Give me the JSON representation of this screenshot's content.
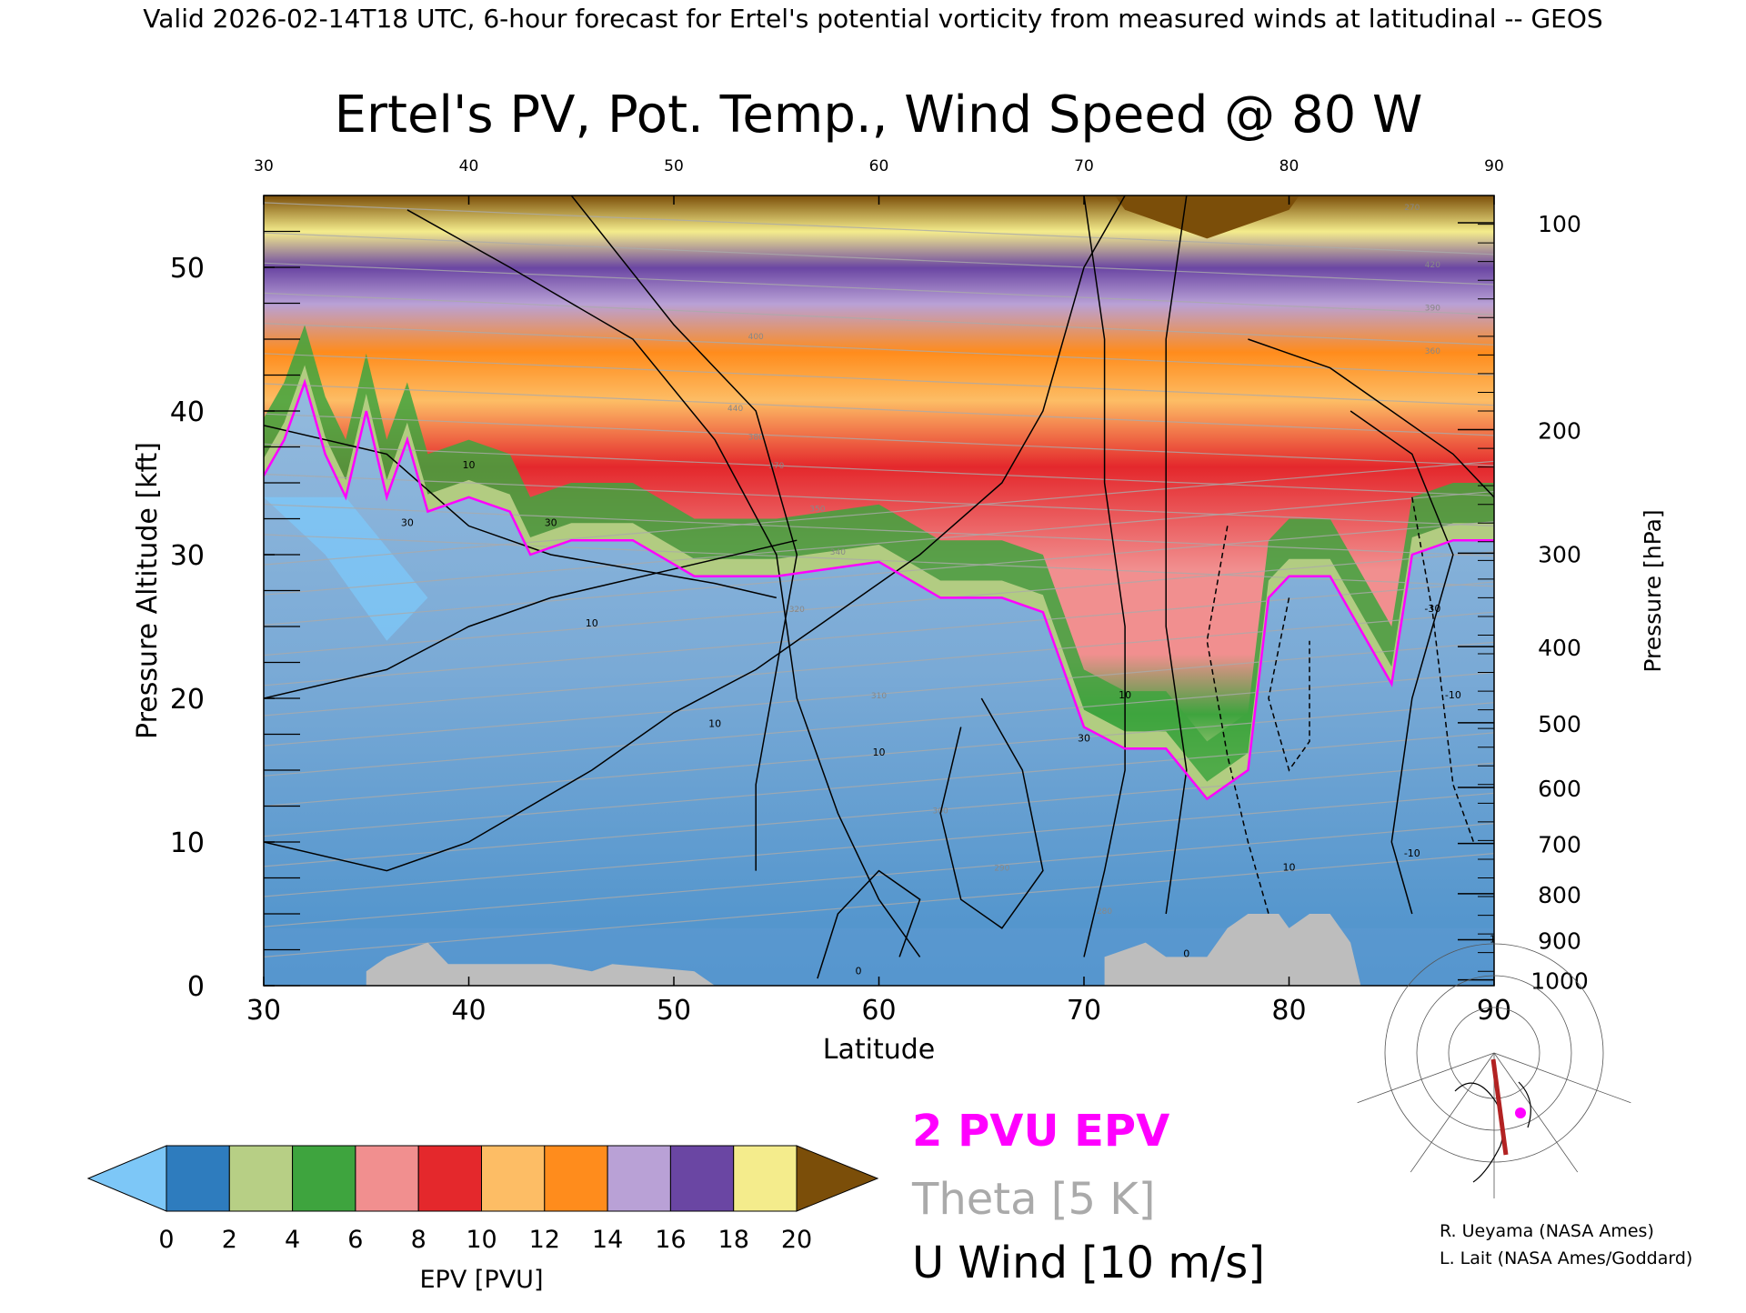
{
  "header": "Valid 2026-02-14T18 UTC, 6-hour forecast for Ertel's potential vorticity from measured winds at latitudinal -- GEOS",
  "chart_data": {
    "type": "heatmap",
    "title": "Ertel's PV, Pot. Temp., Wind Speed @ 80 W",
    "xlabel": "Latitude",
    "ylabel": "Pressure Altitude [kft]",
    "y2label": "Pressure [hPa]",
    "xlim": [
      30,
      90
    ],
    "ylim": [
      0,
      55
    ],
    "x_ticks": [
      "30",
      "40",
      "50",
      "60",
      "70",
      "80",
      "90"
    ],
    "top_ticks": [
      "30",
      "40",
      "50",
      "60",
      "70",
      "80",
      "90"
    ],
    "y_ticks": [
      "0",
      "10",
      "20",
      "30",
      "40",
      "50"
    ],
    "pressure_ticks": [
      {
        "label": "100",
        "kft": 53.1
      },
      {
        "label": "200",
        "kft": 38.7
      },
      {
        "label": "300",
        "kft": 30.1
      },
      {
        "label": "400",
        "kft": 23.6
      },
      {
        "label": "500",
        "kft": 18.3
      },
      {
        "label": "600",
        "kft": 13.8
      },
      {
        "label": "700",
        "kft": 9.9
      },
      {
        "label": "800",
        "kft": 6.4
      },
      {
        "label": "900",
        "kft": 3.2
      },
      {
        "label": "1000",
        "kft": 0.4
      }
    ],
    "tropopause_2pvu_kft": [
      {
        "lat": 30,
        "kft": 35.5
      },
      {
        "lat": 31,
        "kft": 38
      },
      {
        "lat": 32,
        "kft": 42
      },
      {
        "lat": 33,
        "kft": 37
      },
      {
        "lat": 34,
        "kft": 34
      },
      {
        "lat": 35,
        "kft": 40
      },
      {
        "lat": 36,
        "kft": 34
      },
      {
        "lat": 37,
        "kft": 38
      },
      {
        "lat": 38,
        "kft": 33
      },
      {
        "lat": 40,
        "kft": 34
      },
      {
        "lat": 42,
        "kft": 33
      },
      {
        "lat": 43,
        "kft": 30
      },
      {
        "lat": 45,
        "kft": 31
      },
      {
        "lat": 48,
        "kft": 31
      },
      {
        "lat": 51,
        "kft": 28.5
      },
      {
        "lat": 55,
        "kft": 28.5
      },
      {
        "lat": 60,
        "kft": 29.5
      },
      {
        "lat": 63,
        "kft": 27
      },
      {
        "lat": 66,
        "kft": 27
      },
      {
        "lat": 68,
        "kft": 26
      },
      {
        "lat": 69,
        "kft": 22
      },
      {
        "lat": 70,
        "kft": 18
      },
      {
        "lat": 72,
        "kft": 16.5
      },
      {
        "lat": 74,
        "kft": 16.5
      },
      {
        "lat": 76,
        "kft": 13
      },
      {
        "lat": 78,
        "kft": 15
      },
      {
        "lat": 79,
        "kft": 27
      },
      {
        "lat": 80,
        "kft": 28.5
      },
      {
        "lat": 82,
        "kft": 28.5
      },
      {
        "lat": 83,
        "kft": 26
      },
      {
        "lat": 85,
        "kft": 21
      },
      {
        "lat": 86,
        "kft": 30
      },
      {
        "lat": 88,
        "kft": 31
      },
      {
        "lat": 90,
        "kft": 31
      }
    ],
    "terrain_kft": [
      {
        "lat": 35,
        "kft": 1
      },
      {
        "lat": 36,
        "kft": 2
      },
      {
        "lat": 38,
        "kft": 3
      },
      {
        "lat": 39,
        "kft": 1.5
      },
      {
        "lat": 44,
        "kft": 1.5
      },
      {
        "lat": 46,
        "kft": 1
      },
      {
        "lat": 47,
        "kft": 1.5
      },
      {
        "lat": 51,
        "kft": 1
      },
      {
        "lat": 52,
        "kft": 0
      },
      {
        "lat": 71,
        "kft": 0
      },
      {
        "lat": 71,
        "kft": 2
      },
      {
        "lat": 73,
        "kft": 3
      },
      {
        "lat": 74,
        "kft": 2
      },
      {
        "lat": 76,
        "kft": 2
      },
      {
        "lat": 77,
        "kft": 4
      },
      {
        "lat": 78,
        "kft": 5
      },
      {
        "lat": 79.5,
        "kft": 5
      },
      {
        "lat": 80,
        "kft": 4
      },
      {
        "lat": 81,
        "kft": 5
      },
      {
        "lat": 82,
        "kft": 5
      },
      {
        "lat": 83,
        "kft": 3
      },
      {
        "lat": 83.5,
        "kft": 0
      }
    ],
    "colorbar": {
      "label": "EPV [PVU]",
      "ticks": [
        "0",
        "2",
        "4",
        "6",
        "8",
        "10",
        "12",
        "14",
        "16",
        "18",
        "20"
      ],
      "colors": [
        "#2e7cbe",
        "#b7cf85",
        "#3ea43e",
        "#f18f8f",
        "#e4282c",
        "#fdbd65",
        "#ff8c1c",
        "#b9a1d6",
        "#6a46a3",
        "#f4ec8c"
      ],
      "under_color": "#7dc7f7",
      "over_color": "#7b4e09"
    },
    "legend": [
      {
        "label": "2 PVU EPV",
        "color": "#ff00ff"
      },
      {
        "label": "Theta [5 K]",
        "color": "#aaaaaa"
      },
      {
        "label": "U Wind [10 m/s]",
        "color": "#000000"
      }
    ],
    "contour_labels": [
      "10",
      "30",
      "10",
      "30",
      "10",
      "10",
      "10",
      "30",
      "0",
      "10",
      "0",
      "-10",
      "-30",
      "-10",
      "-10"
    ],
    "theta_labels": [
      "440",
      "400",
      "380",
      "370",
      "350",
      "340",
      "320",
      "310",
      "300",
      "290",
      "280",
      "270",
      "420",
      "390",
      "360"
    ]
  },
  "inset_map": {
    "credit_1": "R. Ueyama (NASA Ames)",
    "credit_2": "L. Lait (NASA Ames/Goddard)"
  },
  "colors": {
    "tropopause": "#ff00ff",
    "theta": "#aaaaaa",
    "wind": "#000000",
    "terrain": "#bdbdbd"
  }
}
